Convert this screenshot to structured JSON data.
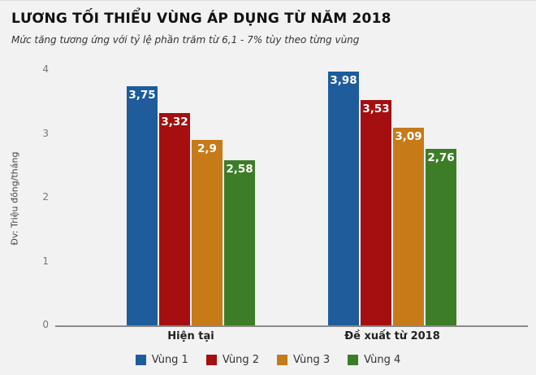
{
  "chart_data": {
    "type": "bar",
    "title": "LƯƠNG TỐI THIỂU VÙNG ÁP DỤNG TỪ NĂM 2018",
    "subtitle": "Mức tăng tương ứng với tỷ lệ phần trăm từ 6,1 - 7% tùy theo từng vùng",
    "ylabel": "Đv: Triệu đồng/tháng",
    "categories": [
      "Hiện tại",
      "Đề xuất từ 2018"
    ],
    "series": [
      {
        "name": "Vùng 1",
        "color": "#1e5c9c",
        "values": [
          3.75,
          3.98
        ],
        "labels": [
          "3,75",
          "3,98"
        ]
      },
      {
        "name": "Vùng 2",
        "color": "#a50f0f",
        "values": [
          3.32,
          3.53
        ],
        "labels": [
          "3,32",
          "3,53"
        ]
      },
      {
        "name": "Vùng 3",
        "color": "#c67a18",
        "values": [
          2.9,
          3.09
        ],
        "labels": [
          "2,9",
          "3,09"
        ]
      },
      {
        "name": "Vùng 4",
        "color": "#3d7d28",
        "values": [
          2.58,
          2.76
        ],
        "labels": [
          "2,58",
          "2,76"
        ]
      }
    ],
    "yticks": [
      "0",
      "1",
      "2",
      "3",
      "4"
    ],
    "ylim": [
      0,
      4
    ],
    "grid": false,
    "legend_position": "bottom"
  }
}
